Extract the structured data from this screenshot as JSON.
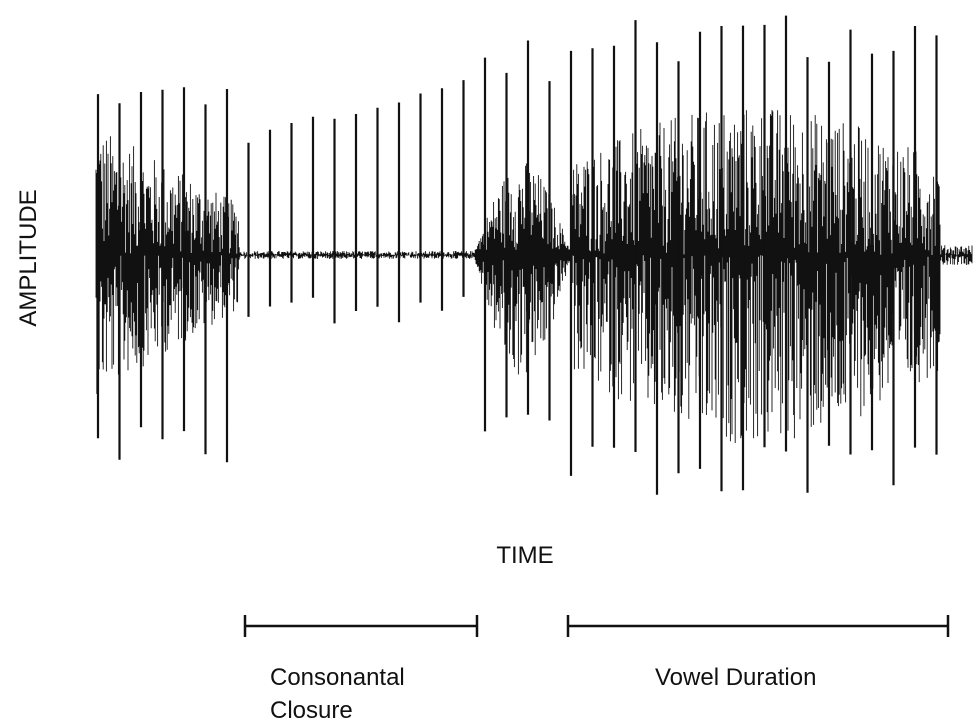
{
  "axes": {
    "y_label": "AMPLITUDE",
    "x_label": "TIME"
  },
  "segments": [
    {
      "label_lines": [
        "Consonantal",
        "Closure"
      ]
    },
    {
      "label_lines": [
        "Vowel Duration"
      ]
    }
  ]
}
